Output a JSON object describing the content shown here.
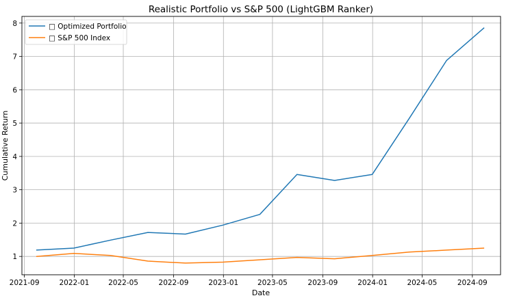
{
  "chart_data": {
    "type": "line",
    "title": "Realistic Portfolio vs S&P 500 (LightGBM Ranker)",
    "xlabel": "Date",
    "ylabel": "Cumulative Return",
    "xlim": [
      "2021-08-26",
      "2024-11-09"
    ],
    "ylim": [
      0.45,
      8.2
    ],
    "grid": true,
    "legend": "top-left",
    "x_ticks": [
      "2021-09",
      "2022-01",
      "2022-05",
      "2022-09",
      "2023-01",
      "2023-05",
      "2023-09",
      "2024-01",
      "2024-05",
      "2024-09"
    ],
    "y_ticks": [
      1,
      2,
      3,
      4,
      5,
      6,
      7,
      8
    ],
    "x": [
      "2021-09-30",
      "2021-12-31",
      "2022-03-31",
      "2022-06-30",
      "2022-09-30",
      "2022-12-31",
      "2023-03-31",
      "2023-06-30",
      "2023-09-30",
      "2023-12-31",
      "2024-03-31",
      "2024-06-30",
      "2024-09-30"
    ],
    "series": [
      {
        "name": "□ Optimized Portfolio",
        "color": "#1f77b4",
        "values": [
          1.19,
          1.25,
          1.49,
          1.72,
          1.67,
          1.94,
          2.26,
          3.46,
          3.28,
          3.46,
          5.15,
          6.88,
          7.86
        ]
      },
      {
        "name": "□ S&P 500 Index",
        "color": "#ff7f0e",
        "values": [
          1.0,
          1.09,
          1.03,
          0.86,
          0.8,
          0.83,
          0.9,
          0.97,
          0.93,
          1.03,
          1.13,
          1.19,
          1.25
        ]
      }
    ]
  }
}
